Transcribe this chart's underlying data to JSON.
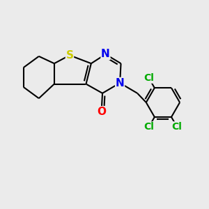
{
  "bg_color": "#ebebeb",
  "atom_colors": {
    "S": "#cccc00",
    "N": "#0000ee",
    "O": "#ff0000",
    "Cl": "#00aa00",
    "C": "#000000"
  },
  "bond_color": "#000000",
  "bond_width": 1.5,
  "font_size_heavy": 11,
  "font_size_cl": 10
}
